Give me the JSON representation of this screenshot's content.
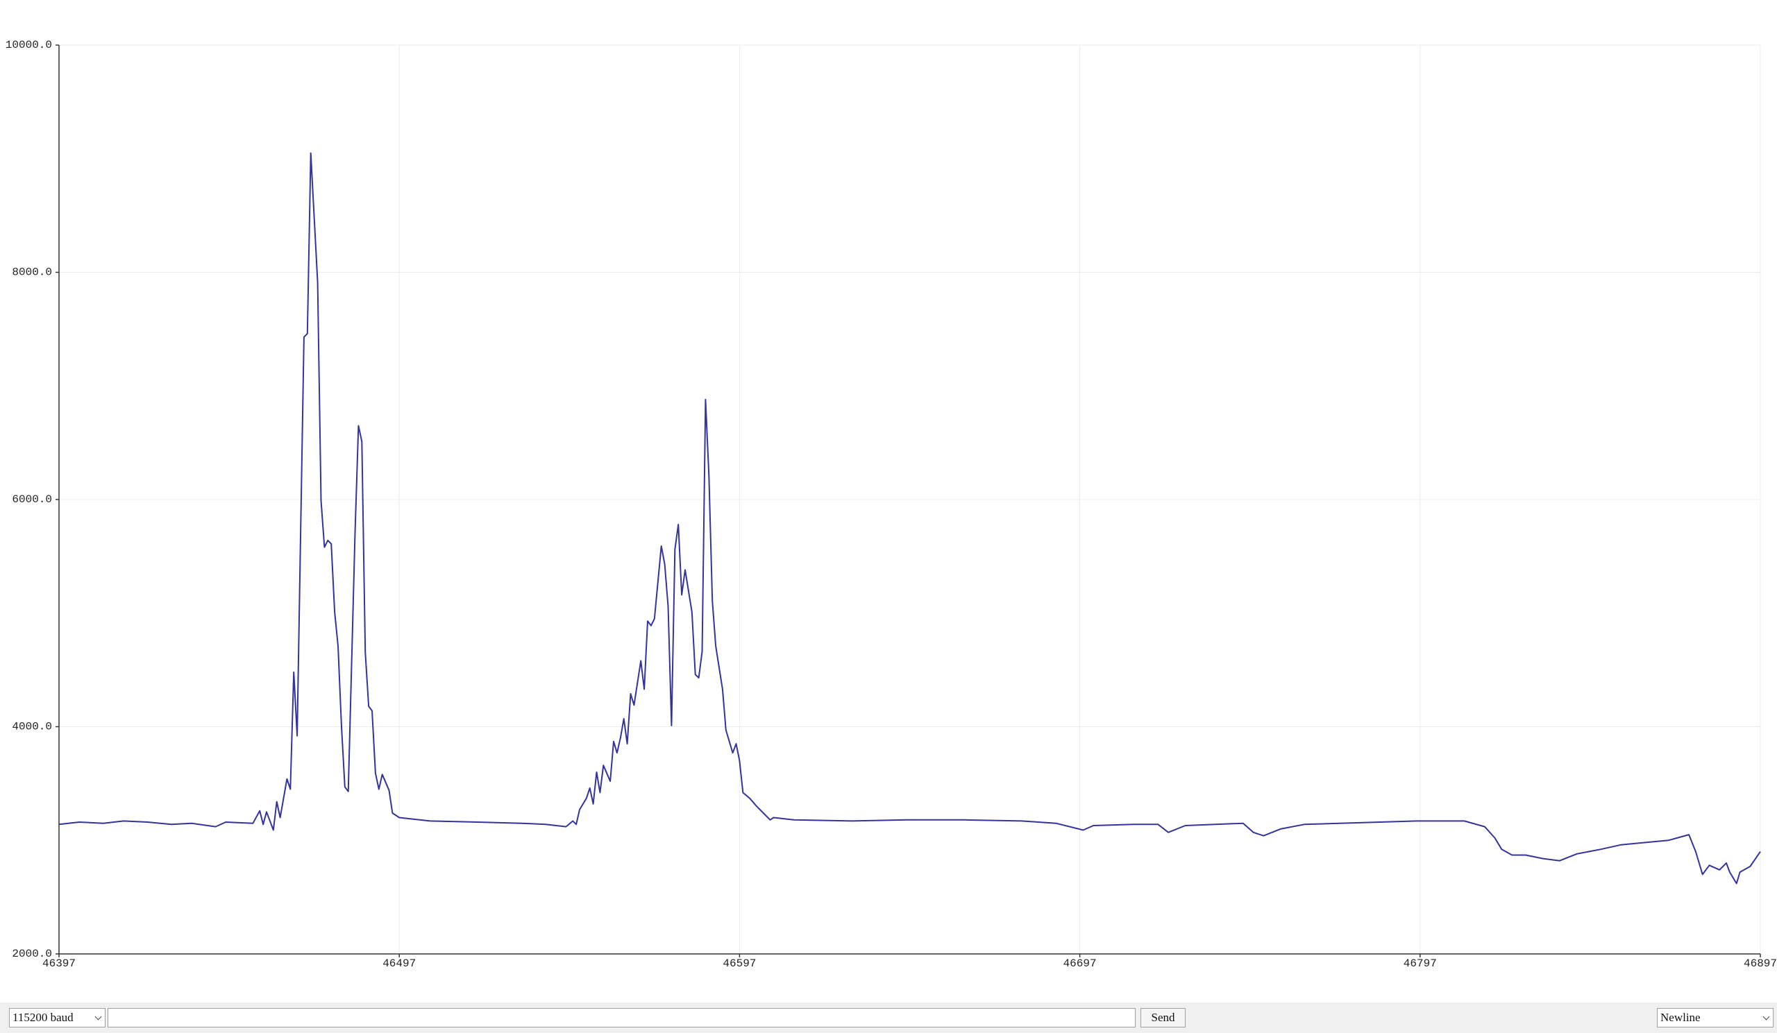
{
  "chart_data": {
    "type": "line",
    "x": [
      46397,
      46403,
      46410,
      46416,
      46423,
      46430,
      46436,
      46443,
      46446,
      46454,
      46456,
      46457,
      46458,
      46460,
      46461,
      46462,
      46464,
      46465,
      46466,
      46467,
      46469,
      46470,
      46471,
      46473,
      46474,
      46475,
      46476,
      46477,
      46478,
      46479,
      46480,
      46481,
      46482,
      46484,
      46485,
      46486,
      46487,
      46488,
      46489,
      46490,
      46491,
      46492,
      46494,
      46495,
      46497,
      46506,
      46520,
      46533,
      46540,
      46546,
      46548,
      46549,
      46550,
      46552,
      46553,
      46554,
      46555,
      46556,
      46557,
      46559,
      46560,
      46561,
      46562,
      46563,
      46564,
      46565,
      46566,
      46568,
      46569,
      46570,
      46571,
      46572,
      46574,
      46575,
      46576,
      46577,
      46578,
      46579,
      46580,
      46581,
      46583,
      46584,
      46585,
      46586,
      46587,
      46588,
      46589,
      46590,
      46592,
      46593,
      46594,
      46595,
      46596,
      46597,
      46598,
      46600,
      46602,
      46604,
      46606,
      46607,
      46613,
      46630,
      46646,
      46663,
      46680,
      46690,
      46698,
      46701,
      46713,
      46720,
      46723,
      46728,
      46745,
      46748,
      46751,
      46756,
      46763,
      46796,
      46810,
      46816,
      46819,
      46821,
      46824,
      46828,
      46833,
      46838,
      46843,
      46850,
      46856,
      46863,
      46870,
      46876,
      46878,
      46880,
      46882,
      46885,
      46887,
      46888,
      46890,
      46891,
      46894,
      46897
    ],
    "values": [
      3140,
      3160,
      3150,
      3170,
      3160,
      3140,
      3150,
      3120,
      3160,
      3150,
      3260,
      3140,
      3250,
      3090,
      3340,
      3200,
      3540,
      3450,
      4480,
      3920,
      7430,
      7460,
      9050,
      7910,
      5990,
      5580,
      5640,
      5610,
      5010,
      4710,
      4010,
      3470,
      3430,
      5710,
      6650,
      6510,
      4660,
      4180,
      4140,
      3590,
      3450,
      3580,
      3440,
      3240,
      3200,
      3170,
      3160,
      3150,
      3140,
      3120,
      3170,
      3140,
      3270,
      3370,
      3460,
      3320,
      3600,
      3420,
      3660,
      3520,
      3870,
      3770,
      3900,
      4070,
      3850,
      4290,
      4190,
      4580,
      4330,
      4930,
      4890,
      4950,
      5590,
      5430,
      5060,
      4010,
      5560,
      5780,
      5160,
      5380,
      5010,
      4460,
      4430,
      4660,
      6880,
      6210,
      5110,
      4710,
      4330,
      3970,
      3870,
      3770,
      3850,
      3700,
      3420,
      3370,
      3300,
      3240,
      3180,
      3200,
      3180,
      3170,
      3180,
      3180,
      3170,
      3150,
      3090,
      3130,
      3140,
      3140,
      3070,
      3130,
      3150,
      3070,
      3040,
      3100,
      3140,
      3170,
      3170,
      3120,
      3020,
      2920,
      2870,
      2870,
      2840,
      2820,
      2880,
      2920,
      2960,
      2980,
      3000,
      3050,
      2900,
      2700,
      2780,
      2740,
      2800,
      2720,
      2620,
      2720,
      2770,
      2900
    ],
    "color": "#33339a",
    "xlim": [
      46397,
      46897
    ],
    "xticks": [
      46397,
      46497,
      46597,
      46697,
      46797,
      46897
    ],
    "ylim": [
      2000,
      10000
    ],
    "yticks": [
      {
        "value": 2000,
        "label": "2000.0"
      },
      {
        "value": 4000,
        "label": "4000.0"
      },
      {
        "value": 6000,
        "label": "6000.0"
      },
      {
        "value": 8000,
        "label": "8000.0"
      },
      {
        "value": 10000,
        "label": "10000.0"
      }
    ],
    "grid": true
  },
  "controls": {
    "baud": "115200 baud",
    "send": "Send",
    "line_ending": "Newline"
  }
}
